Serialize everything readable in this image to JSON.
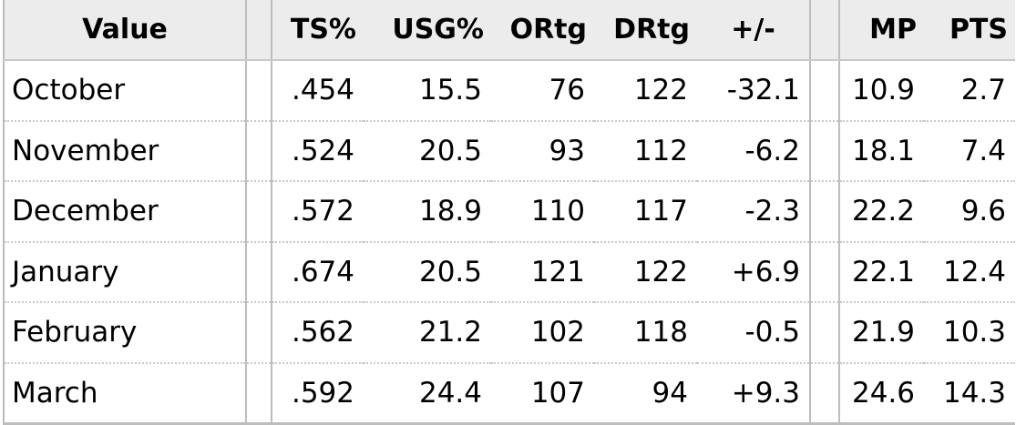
{
  "table": {
    "headers": {
      "value": "Value",
      "ts": "TS%",
      "usg": "USG%",
      "ortg": "ORtg",
      "drtg": "DRtg",
      "plus_minus": "+/-",
      "mp": "MP",
      "pts": "PTS"
    },
    "rows": [
      {
        "month": "October",
        "ts": ".454",
        "usg": "15.5",
        "ortg": "76",
        "drtg": "122",
        "plus_minus": "-32.1",
        "mp": "10.9",
        "pts": "2.7"
      },
      {
        "month": "November",
        "ts": ".524",
        "usg": "20.5",
        "ortg": "93",
        "drtg": "112",
        "plus_minus": "-6.2",
        "mp": "18.1",
        "pts": "7.4"
      },
      {
        "month": "December",
        "ts": ".572",
        "usg": "18.9",
        "ortg": "110",
        "drtg": "117",
        "plus_minus": "-2.3",
        "mp": "22.2",
        "pts": "9.6"
      },
      {
        "month": "January",
        "ts": ".674",
        "usg": "20.5",
        "ortg": "121",
        "drtg": "122",
        "plus_minus": "+6.9",
        "mp": "22.1",
        "pts": "12.4"
      },
      {
        "month": "February",
        "ts": ".562",
        "usg": "21.2",
        "ortg": "102",
        "drtg": "118",
        "plus_minus": "-0.5",
        "mp": "21.9",
        "pts": "10.3"
      },
      {
        "month": "March",
        "ts": ".592",
        "usg": "24.4",
        "ortg": "107",
        "drtg": "94",
        "plus_minus": "+9.3",
        "mp": "24.6",
        "pts": "14.3"
      }
    ]
  }
}
